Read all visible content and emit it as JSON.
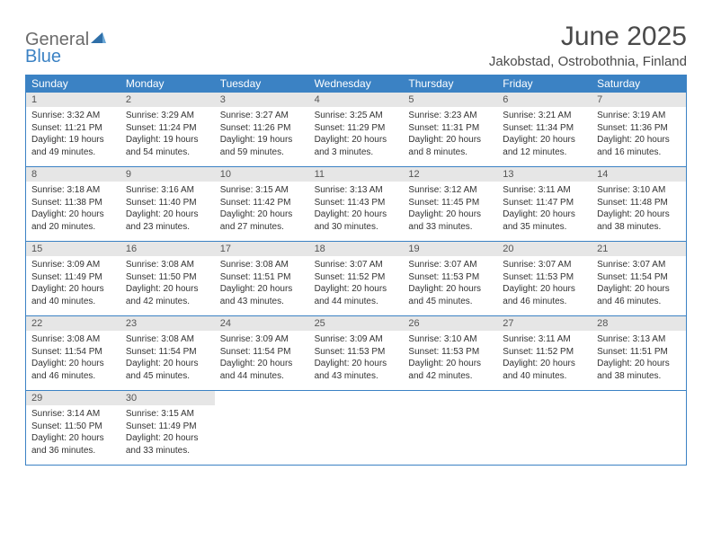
{
  "brand": {
    "word1": "General",
    "word2": "Blue"
  },
  "title": "June 2025",
  "location": "Jakobstad, Ostrobothnia, Finland",
  "colors": {
    "accent": "#3b82c4",
    "daynum_bg": "#e6e6e6",
    "text": "#333333",
    "muted": "#6b6b6b"
  },
  "weekdays": [
    "Sunday",
    "Monday",
    "Tuesday",
    "Wednesday",
    "Thursday",
    "Friday",
    "Saturday"
  ],
  "weeks": [
    [
      {
        "n": "1",
        "sunrise": "3:32 AM",
        "sunset": "11:21 PM",
        "day": "19 hours and 49 minutes."
      },
      {
        "n": "2",
        "sunrise": "3:29 AM",
        "sunset": "11:24 PM",
        "day": "19 hours and 54 minutes."
      },
      {
        "n": "3",
        "sunrise": "3:27 AM",
        "sunset": "11:26 PM",
        "day": "19 hours and 59 minutes."
      },
      {
        "n": "4",
        "sunrise": "3:25 AM",
        "sunset": "11:29 PM",
        "day": "20 hours and 3 minutes."
      },
      {
        "n": "5",
        "sunrise": "3:23 AM",
        "sunset": "11:31 PM",
        "day": "20 hours and 8 minutes."
      },
      {
        "n": "6",
        "sunrise": "3:21 AM",
        "sunset": "11:34 PM",
        "day": "20 hours and 12 minutes."
      },
      {
        "n": "7",
        "sunrise": "3:19 AM",
        "sunset": "11:36 PM",
        "day": "20 hours and 16 minutes."
      }
    ],
    [
      {
        "n": "8",
        "sunrise": "3:18 AM",
        "sunset": "11:38 PM",
        "day": "20 hours and 20 minutes."
      },
      {
        "n": "9",
        "sunrise": "3:16 AM",
        "sunset": "11:40 PM",
        "day": "20 hours and 23 minutes."
      },
      {
        "n": "10",
        "sunrise": "3:15 AM",
        "sunset": "11:42 PM",
        "day": "20 hours and 27 minutes."
      },
      {
        "n": "11",
        "sunrise": "3:13 AM",
        "sunset": "11:43 PM",
        "day": "20 hours and 30 minutes."
      },
      {
        "n": "12",
        "sunrise": "3:12 AM",
        "sunset": "11:45 PM",
        "day": "20 hours and 33 minutes."
      },
      {
        "n": "13",
        "sunrise": "3:11 AM",
        "sunset": "11:47 PM",
        "day": "20 hours and 35 minutes."
      },
      {
        "n": "14",
        "sunrise": "3:10 AM",
        "sunset": "11:48 PM",
        "day": "20 hours and 38 minutes."
      }
    ],
    [
      {
        "n": "15",
        "sunrise": "3:09 AM",
        "sunset": "11:49 PM",
        "day": "20 hours and 40 minutes."
      },
      {
        "n": "16",
        "sunrise": "3:08 AM",
        "sunset": "11:50 PM",
        "day": "20 hours and 42 minutes."
      },
      {
        "n": "17",
        "sunrise": "3:08 AM",
        "sunset": "11:51 PM",
        "day": "20 hours and 43 minutes."
      },
      {
        "n": "18",
        "sunrise": "3:07 AM",
        "sunset": "11:52 PM",
        "day": "20 hours and 44 minutes."
      },
      {
        "n": "19",
        "sunrise": "3:07 AM",
        "sunset": "11:53 PM",
        "day": "20 hours and 45 minutes."
      },
      {
        "n": "20",
        "sunrise": "3:07 AM",
        "sunset": "11:53 PM",
        "day": "20 hours and 46 minutes."
      },
      {
        "n": "21",
        "sunrise": "3:07 AM",
        "sunset": "11:54 PM",
        "day": "20 hours and 46 minutes."
      }
    ],
    [
      {
        "n": "22",
        "sunrise": "3:08 AM",
        "sunset": "11:54 PM",
        "day": "20 hours and 46 minutes."
      },
      {
        "n": "23",
        "sunrise": "3:08 AM",
        "sunset": "11:54 PM",
        "day": "20 hours and 45 minutes."
      },
      {
        "n": "24",
        "sunrise": "3:09 AM",
        "sunset": "11:54 PM",
        "day": "20 hours and 44 minutes."
      },
      {
        "n": "25",
        "sunrise": "3:09 AM",
        "sunset": "11:53 PM",
        "day": "20 hours and 43 minutes."
      },
      {
        "n": "26",
        "sunrise": "3:10 AM",
        "sunset": "11:53 PM",
        "day": "20 hours and 42 minutes."
      },
      {
        "n": "27",
        "sunrise": "3:11 AM",
        "sunset": "11:52 PM",
        "day": "20 hours and 40 minutes."
      },
      {
        "n": "28",
        "sunrise": "3:13 AM",
        "sunset": "11:51 PM",
        "day": "20 hours and 38 minutes."
      }
    ],
    [
      {
        "n": "29",
        "sunrise": "3:14 AM",
        "sunset": "11:50 PM",
        "day": "20 hours and 36 minutes."
      },
      {
        "n": "30",
        "sunrise": "3:15 AM",
        "sunset": "11:49 PM",
        "day": "20 hours and 33 minutes."
      },
      null,
      null,
      null,
      null,
      null
    ]
  ],
  "labels": {
    "sunrise": "Sunrise: ",
    "sunset": "Sunset: ",
    "daylight": "Daylight: "
  }
}
